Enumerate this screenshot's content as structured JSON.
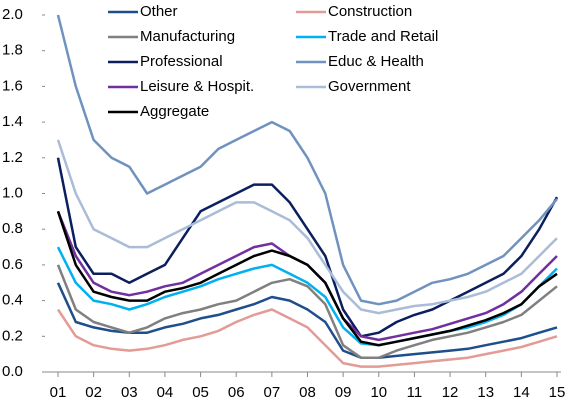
{
  "chart_data": {
    "type": "line",
    "x": [
      1,
      1.5,
      2,
      2.5,
      3,
      3.5,
      4,
      4.5,
      5,
      5.5,
      6,
      6.5,
      7,
      7.5,
      8,
      8.5,
      9,
      9.5,
      10,
      10.5,
      11,
      11.5,
      12,
      12.5,
      13,
      13.5,
      14,
      14.5,
      15
    ],
    "series": [
      {
        "name": "Other",
        "color": "#1f4e8c",
        "values": [
          0.5,
          0.28,
          0.25,
          0.23,
          0.22,
          0.22,
          0.25,
          0.27,
          0.3,
          0.32,
          0.35,
          0.38,
          0.42,
          0.4,
          0.35,
          0.28,
          0.12,
          0.08,
          0.08,
          0.09,
          0.1,
          0.11,
          0.12,
          0.13,
          0.15,
          0.17,
          0.19,
          0.22,
          0.25
        ]
      },
      {
        "name": "Construction",
        "color": "#e39b96",
        "values": [
          0.35,
          0.2,
          0.15,
          0.13,
          0.12,
          0.13,
          0.15,
          0.18,
          0.2,
          0.23,
          0.28,
          0.32,
          0.35,
          0.3,
          0.25,
          0.15,
          0.05,
          0.03,
          0.03,
          0.04,
          0.05,
          0.06,
          0.07,
          0.08,
          0.1,
          0.12,
          0.14,
          0.17,
          0.2
        ]
      },
      {
        "name": "Manufacturing",
        "color": "#808080",
        "values": [
          0.6,
          0.35,
          0.28,
          0.25,
          0.22,
          0.25,
          0.3,
          0.33,
          0.35,
          0.38,
          0.4,
          0.45,
          0.5,
          0.52,
          0.48,
          0.38,
          0.15,
          0.08,
          0.08,
          0.12,
          0.15,
          0.18,
          0.2,
          0.22,
          0.25,
          0.28,
          0.32,
          0.4,
          0.48
        ]
      },
      {
        "name": "Trade and Retail",
        "color": "#00b0f0",
        "values": [
          0.7,
          0.5,
          0.4,
          0.38,
          0.35,
          0.38,
          0.42,
          0.45,
          0.48,
          0.52,
          0.55,
          0.58,
          0.6,
          0.55,
          0.5,
          0.42,
          0.25,
          0.16,
          0.15,
          0.17,
          0.19,
          0.21,
          0.23,
          0.25,
          0.28,
          0.32,
          0.38,
          0.48,
          0.58
        ]
      },
      {
        "name": "Professional",
        "color": "#0b1f5e",
        "values": [
          1.2,
          0.7,
          0.55,
          0.55,
          0.5,
          0.55,
          0.6,
          0.75,
          0.9,
          0.95,
          1.0,
          1.05,
          1.05,
          0.95,
          0.8,
          0.65,
          0.35,
          0.2,
          0.22,
          0.28,
          0.32,
          0.35,
          0.4,
          0.45,
          0.5,
          0.55,
          0.65,
          0.8,
          0.98
        ]
      },
      {
        "name": "Educ & Health",
        "color": "#7092be",
        "values": [
          2.0,
          1.6,
          1.3,
          1.2,
          1.15,
          1.0,
          1.05,
          1.1,
          1.15,
          1.25,
          1.3,
          1.35,
          1.4,
          1.35,
          1.2,
          1.0,
          0.6,
          0.4,
          0.38,
          0.4,
          0.45,
          0.5,
          0.52,
          0.55,
          0.6,
          0.65,
          0.75,
          0.85,
          0.97
        ]
      },
      {
        "name": "Leisure & Hospit.",
        "color": "#7030a0",
        "values": [
          0.9,
          0.65,
          0.5,
          0.45,
          0.43,
          0.45,
          0.48,
          0.5,
          0.55,
          0.6,
          0.65,
          0.7,
          0.72,
          0.65,
          0.6,
          0.5,
          0.3,
          0.2,
          0.18,
          0.2,
          0.22,
          0.24,
          0.27,
          0.3,
          0.33,
          0.38,
          0.45,
          0.55,
          0.65
        ]
      },
      {
        "name": "Government",
        "color": "#a9bcd8",
        "values": [
          1.3,
          1.0,
          0.8,
          0.75,
          0.7,
          0.7,
          0.75,
          0.8,
          0.85,
          0.9,
          0.95,
          0.95,
          0.9,
          0.85,
          0.75,
          0.6,
          0.45,
          0.35,
          0.33,
          0.35,
          0.37,
          0.38,
          0.4,
          0.42,
          0.45,
          0.5,
          0.55,
          0.65,
          0.75
        ]
      },
      {
        "name": "Aggregate",
        "color": "#000000",
        "values": [
          0.9,
          0.6,
          0.45,
          0.42,
          0.4,
          0.4,
          0.45,
          0.47,
          0.5,
          0.55,
          0.6,
          0.65,
          0.68,
          0.65,
          0.6,
          0.5,
          0.3,
          0.17,
          0.15,
          0.17,
          0.19,
          0.21,
          0.23,
          0.26,
          0.29,
          0.33,
          0.38,
          0.48,
          0.55
        ]
      }
    ],
    "xlim": [
      1,
      15
    ],
    "xticks": [
      {
        "value": 1,
        "label": "01"
      },
      {
        "value": 2,
        "label": "02"
      },
      {
        "value": 3,
        "label": "03"
      },
      {
        "value": 4,
        "label": "04"
      },
      {
        "value": 5,
        "label": "05"
      },
      {
        "value": 6,
        "label": "06"
      },
      {
        "value": 7,
        "label": "07"
      },
      {
        "value": 8,
        "label": "08"
      },
      {
        "value": 9,
        "label": "09"
      },
      10,
      11,
      12,
      13,
      14,
      15
    ],
    "ylim": [
      0,
      2
    ],
    "yticks": [
      {
        "value": 0,
        "label": "0.0"
      },
      0.2,
      0.4,
      0.6,
      0.8,
      {
        "value": 1,
        "label": "1.0"
      },
      1.2,
      1.4,
      1.6,
      1.8,
      {
        "value": 2,
        "label": "2.0"
      }
    ],
    "grid": false
  }
}
